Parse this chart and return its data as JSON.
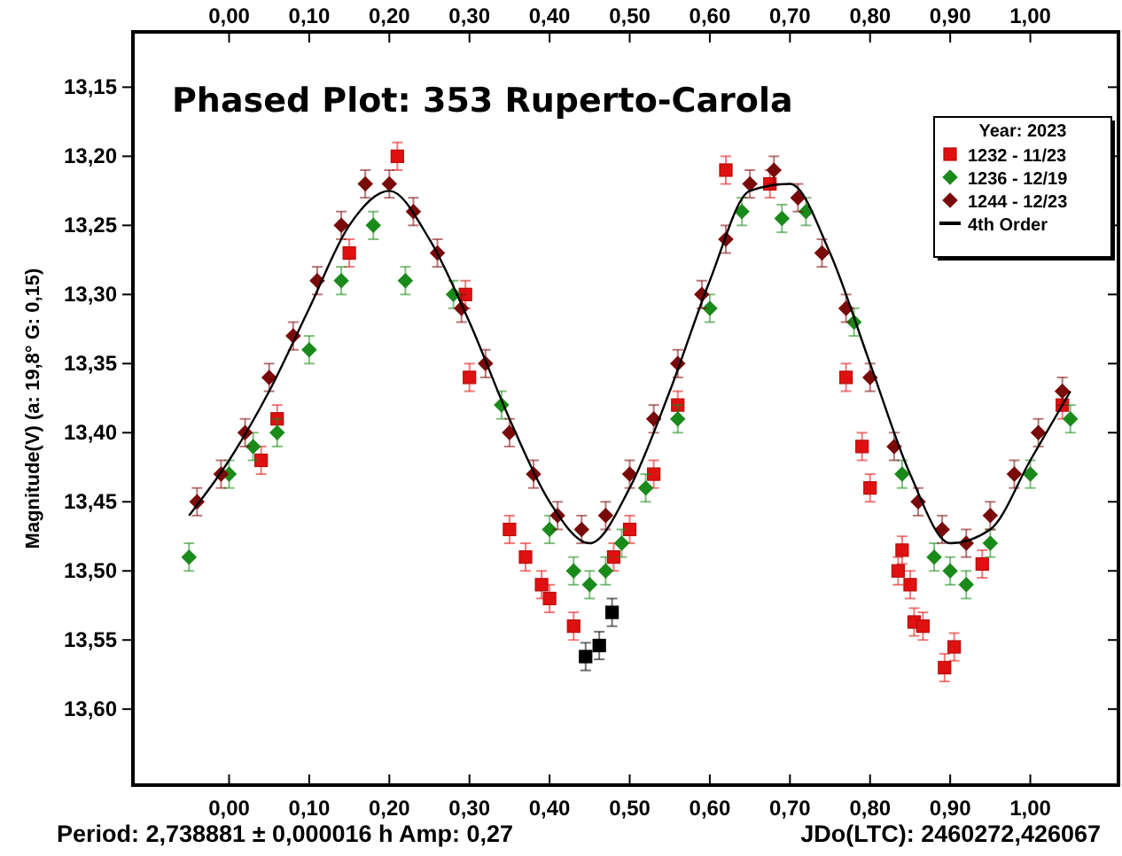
{
  "chart_data": {
    "type": "scatter",
    "title": "Phased Plot: 353 Ruperto-Carola",
    "ylabel": "Magnitude(V)  (a: 19,8°  G: 0,15)",
    "legend_title": "Year: 2023",
    "legend": "top right",
    "grid": false,
    "annotations": [
      "Period: 2,738881 ± 0,000016 h  Amp: 0,27",
      "JDo(LTC): 2460272,426067"
    ],
    "xlim": [
      -0.12,
      1.11
    ],
    "ylim": [
      13.655,
      13.11
    ],
    "xticks": [
      {
        "value": 0,
        "label": "0,00"
      },
      {
        "value": 0.1,
        "label": "0,10"
      },
      {
        "value": 0.2,
        "label": "0,20"
      },
      {
        "value": 0.3,
        "label": "0,30"
      },
      {
        "value": 0.4,
        "label": "0,40"
      },
      {
        "value": 0.5,
        "label": "0,50"
      },
      {
        "value": 0.6,
        "label": "0,60"
      },
      {
        "value": 0.7,
        "label": "0,70"
      },
      {
        "value": 0.8,
        "label": "0,80"
      },
      {
        "value": 0.9,
        "label": "0,90"
      },
      {
        "value": 1,
        "label": "1,00"
      }
    ],
    "x2lim": [
      -0.12,
      1.11
    ],
    "x2ticks": [
      {
        "value": 0,
        "label": "0,00"
      },
      {
        "value": 0.1,
        "label": "0,10"
      },
      {
        "value": 0.2,
        "label": "0,20"
      },
      {
        "value": 0.3,
        "label": "0,30"
      },
      {
        "value": 0.4,
        "label": "0,40"
      },
      {
        "value": 0.5,
        "label": "0,50"
      },
      {
        "value": 0.6,
        "label": "0,60"
      },
      {
        "value": 0.7,
        "label": "0,70"
      },
      {
        "value": 0.8,
        "label": "0,80"
      },
      {
        "value": 0.9,
        "label": "0,90"
      },
      {
        "value": 1,
        "label": "1,00"
      }
    ],
    "yticks": [
      {
        "value": 13.15,
        "label": "13,15"
      },
      {
        "value": 13.2,
        "label": "13,20"
      },
      {
        "value": 13.25,
        "label": "13,25"
      },
      {
        "value": 13.3,
        "label": "13,30"
      },
      {
        "value": 13.35,
        "label": "13,35"
      },
      {
        "value": 13.4,
        "label": "13,40"
      },
      {
        "value": 13.45,
        "label": "13,45"
      },
      {
        "value": 13.5,
        "label": "13,50"
      },
      {
        "value": 13.55,
        "label": "13,55"
      },
      {
        "value": 13.6,
        "label": "13,60"
      }
    ],
    "series": [
      {
        "name": "1232 - 11/23",
        "marker": "square",
        "color": "#e01010",
        "x": [
          0.04,
          0.06,
          0.15,
          0.21,
          0.295,
          0.3,
          0.35,
          0.37,
          0.39,
          0.4,
          0.43,
          0.48,
          0.5,
          0.53,
          0.56,
          0.62,
          0.675,
          0.77,
          0.79,
          0.8,
          0.835,
          0.84,
          0.85,
          0.855,
          0.866,
          0.893,
          0.905,
          0.94,
          1.04
        ],
        "values": [
          13.42,
          13.39,
          13.27,
          13.2,
          13.3,
          13.36,
          13.47,
          13.49,
          13.51,
          13.52,
          13.54,
          13.49,
          13.47,
          13.43,
          13.38,
          13.21,
          13.22,
          13.36,
          13.41,
          13.44,
          13.5,
          13.485,
          13.51,
          13.537,
          13.54,
          13.57,
          13.555,
          13.495,
          13.38
        ],
        "errors": [
          0.01,
          0.01,
          0.01,
          0.01,
          0.01,
          0.01,
          0.01,
          0.01,
          0.01,
          0.01,
          0.01,
          0.01,
          0.01,
          0.01,
          0.01,
          0.01,
          0.01,
          0.01,
          0.01,
          0.01,
          0.01,
          0.01,
          0.01,
          0.01,
          0.01,
          0.01,
          0.01,
          0.01,
          0.01
        ]
      },
      {
        "marker": "square",
        "color": "#000000",
        "x": [
          0.445,
          0.462,
          0.478
        ],
        "values": [
          13.562,
          13.554,
          13.53
        ],
        "errors": [
          0.01,
          0.01,
          0.01
        ]
      },
      {
        "name": "1236 - 12/19",
        "marker": "diamond",
        "color": "#1a8a1a",
        "x": [
          -0.05,
          0,
          0.03,
          0.06,
          0.1,
          0.14,
          0.18,
          0.22,
          0.28,
          0.34,
          0.4,
          0.43,
          0.45,
          0.47,
          0.49,
          0.52,
          0.56,
          0.6,
          0.64,
          0.69,
          0.72,
          0.78,
          0.84,
          0.88,
          0.9,
          0.92,
          0.95,
          1,
          1.05
        ],
        "values": [
          13.49,
          13.43,
          13.41,
          13.4,
          13.34,
          13.29,
          13.25,
          13.29,
          13.3,
          13.38,
          13.47,
          13.5,
          13.51,
          13.5,
          13.48,
          13.44,
          13.39,
          13.31,
          13.24,
          13.245,
          13.24,
          13.32,
          13.43,
          13.49,
          13.5,
          13.51,
          13.48,
          13.43,
          13.39
        ],
        "errors": [
          0.01,
          0.01,
          0.01,
          0.01,
          0.01,
          0.01,
          0.01,
          0.01,
          0.01,
          0.01,
          0.01,
          0.01,
          0.01,
          0.01,
          0.01,
          0.01,
          0.01,
          0.01,
          0.01,
          0.01,
          0.01,
          0.01,
          0.01,
          0.01,
          0.01,
          0.01,
          0.01,
          0.01,
          0.01
        ]
      },
      {
        "name": "1244 - 12/23",
        "marker": "diamond",
        "color": "#7a0a0a",
        "x": [
          -0.04,
          -0.01,
          0.02,
          0.05,
          0.08,
          0.11,
          0.14,
          0.17,
          0.2,
          0.23,
          0.26,
          0.29,
          0.32,
          0.35,
          0.38,
          0.41,
          0.44,
          0.47,
          0.5,
          0.53,
          0.56,
          0.59,
          0.62,
          0.65,
          0.68,
          0.71,
          0.74,
          0.77,
          0.8,
          0.83,
          0.86,
          0.89,
          0.92,
          0.95,
          0.98,
          1.01,
          1.04
        ],
        "values": [
          13.45,
          13.43,
          13.4,
          13.36,
          13.33,
          13.29,
          13.25,
          13.22,
          13.22,
          13.24,
          13.27,
          13.31,
          13.35,
          13.4,
          13.43,
          13.46,
          13.47,
          13.46,
          13.43,
          13.39,
          13.35,
          13.3,
          13.26,
          13.22,
          13.21,
          13.23,
          13.27,
          13.31,
          13.36,
          13.41,
          13.45,
          13.47,
          13.48,
          13.46,
          13.43,
          13.4,
          13.37
        ],
        "errors": [
          0.01,
          0.01,
          0.01,
          0.01,
          0.01,
          0.01,
          0.01,
          0.01,
          0.01,
          0.01,
          0.01,
          0.01,
          0.01,
          0.01,
          0.01,
          0.01,
          0.01,
          0.01,
          0.01,
          0.01,
          0.01,
          0.01,
          0.01,
          0.01,
          0.01,
          0.01,
          0.01,
          0.01,
          0.01,
          0.01,
          0.01,
          0.01,
          0.01,
          0.01,
          0.01,
          0.01,
          0.01
        ]
      },
      {
        "name": "4th Order",
        "type": "line",
        "marker": "none",
        "line_style": "solid",
        "color": "#000000",
        "x": [
          -0.05,
          0,
          0.05,
          0.1,
          0.15,
          0.2,
          0.25,
          0.3,
          0.35,
          0.4,
          0.45,
          0.5,
          0.55,
          0.6,
          0.65,
          0.7,
          0.75,
          0.8,
          0.85,
          0.9,
          0.95,
          1,
          1.05
        ],
        "values": [
          13.46,
          13.42,
          13.37,
          13.31,
          13.25,
          13.225,
          13.26,
          13.32,
          13.39,
          13.45,
          13.48,
          13.44,
          13.37,
          13.29,
          13.225,
          13.22,
          13.27,
          13.35,
          13.43,
          13.48,
          13.47,
          13.42,
          13.37
        ]
      }
    ]
  }
}
